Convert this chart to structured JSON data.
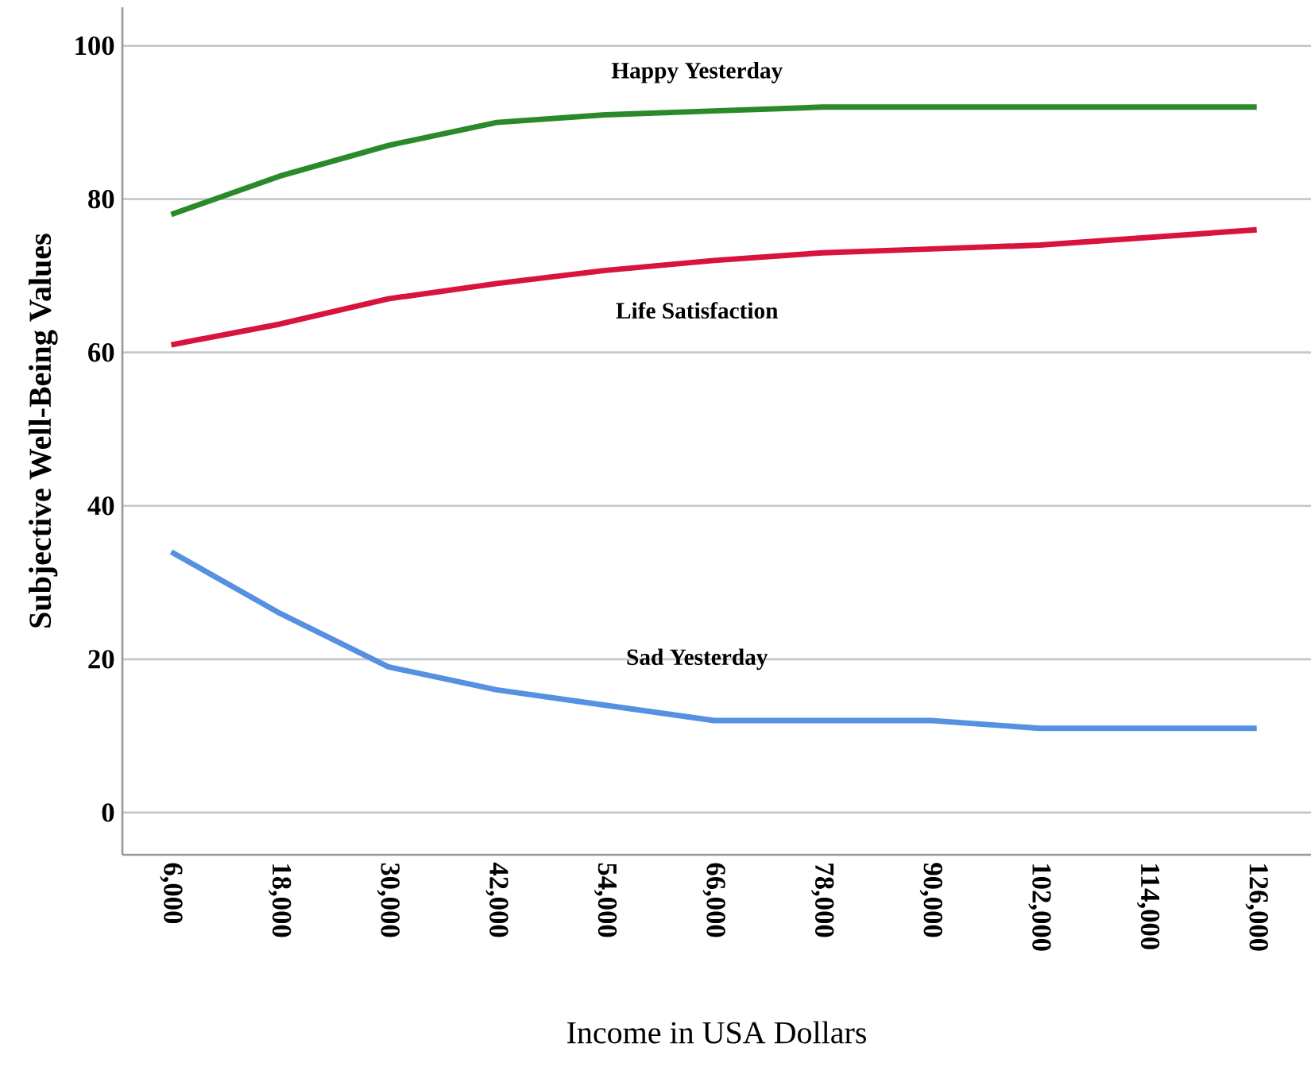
{
  "chart_data": {
    "type": "line",
    "xlabel": "Income in USA Dollars",
    "ylabel": "Subjective Well-Being Values",
    "categories": [
      "6,000",
      "18,000",
      "30,000",
      "42,000",
      "54,000",
      "66,000",
      "78,000",
      "90,000",
      "102,000",
      "114,000",
      "126,000"
    ],
    "series": [
      {
        "name": "Happy Yesterday",
        "color": "#2a8a2a",
        "values": [
          78,
          83,
          87,
          90,
          91,
          91.5,
          92,
          92,
          92,
          92,
          92
        ]
      },
      {
        "name": "Life Satisfaction",
        "color": "#d8143c",
        "values": [
          61,
          63.7,
          67,
          69,
          70.7,
          72,
          73,
          73.5,
          74,
          75,
          76
        ]
      },
      {
        "name": "Sad Yesterday",
        "color": "#5591e0",
        "values": [
          34,
          26,
          19,
          16,
          14,
          12,
          12,
          12,
          11,
          11,
          11
        ]
      }
    ],
    "ylim": [
      -5.5,
      105
    ],
    "yticks": [
      0,
      20,
      40,
      60,
      80,
      100
    ],
    "grid": "y",
    "legend": false,
    "marker": "none",
    "line_style": "solid"
  }
}
